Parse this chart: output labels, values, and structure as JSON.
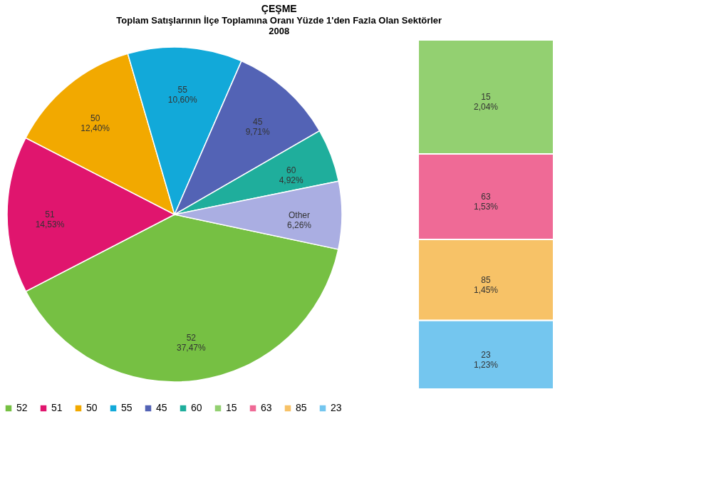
{
  "chart_data": [
    {
      "type": "pie",
      "title": "ÇEŞME",
      "subtitle": [
        "Toplam Satışlarının İlçe Toplamına Oranı Yüzde 1'den Fazla Olan Sektörler",
        "2008"
      ],
      "categories": [
        "52",
        "51",
        "50",
        "55",
        "45",
        "60",
        "Other"
      ],
      "values": [
        37.47,
        14.53,
        12.4,
        10.6,
        9.71,
        4.92,
        6.26
      ],
      "value_labels": [
        "37,47%",
        "14,53%",
        "12,40%",
        "10,60%",
        "9,71%",
        "4,92%",
        "6,26%"
      ],
      "colors": [
        "#76c043",
        "#e0156e",
        "#f2a900",
        "#12a9d9",
        "#5363b5",
        "#1fae9c",
        "#aaaee2"
      ],
      "legend": "bottom"
    },
    {
      "type": "bar",
      "stacked": true,
      "categories": [
        null
      ],
      "series": [
        {
          "name": "23",
          "color": "#74c6ef",
          "values": [
            1.23
          ],
          "value_labels": [
            "1,23%"
          ]
        },
        {
          "name": "85",
          "color": "#f7c267",
          "values": [
            1.45
          ],
          "value_labels": [
            "1,45%"
          ]
        },
        {
          "name": "63",
          "color": "#ef6a96",
          "values": [
            1.53
          ],
          "value_labels": [
            "1,53%"
          ]
        },
        {
          "name": "15",
          "color": "#93d071",
          "values": [
            2.04
          ],
          "value_labels": [
            "2,04%"
          ]
        }
      ],
      "legend": "bottom"
    }
  ]
}
